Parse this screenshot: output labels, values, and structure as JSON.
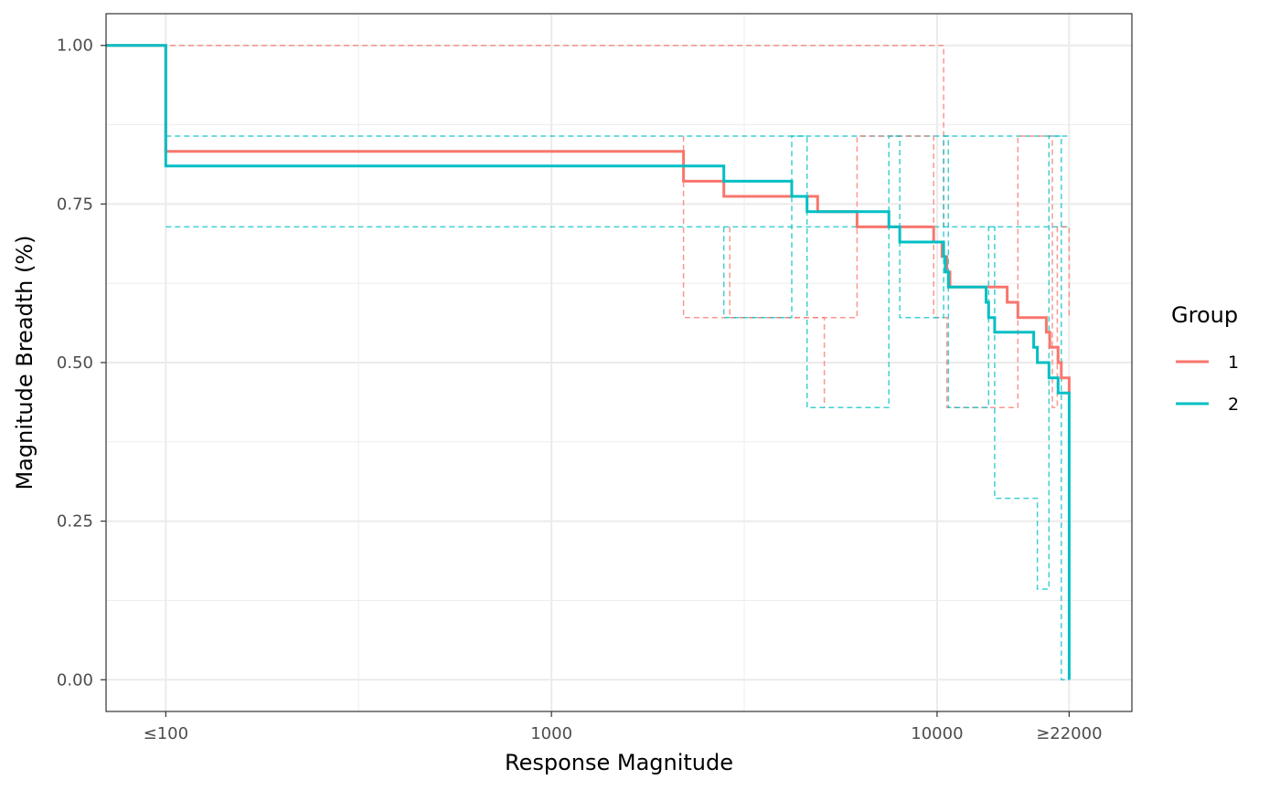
{
  "chart_data": {
    "type": "line",
    "xlabel": "Response Magnitude",
    "ylabel": "Magnitude Breadth (%)",
    "x_scale": "log10",
    "xlim": [
      70,
      32000
    ],
    "ylim": [
      -0.05,
      1.05
    ],
    "grid": true,
    "legend_title": "Group",
    "legend_position": "right",
    "x_ticks": [
      {
        "value": 100,
        "label": "≤100"
      },
      {
        "value": 1000,
        "label": "1000"
      },
      {
        "value": 10000,
        "label": "10000"
      },
      {
        "value": 22000,
        "label": "≥22000"
      }
    ],
    "x_minor_ticks": [
      316,
      3162
    ],
    "y_ticks": [
      {
        "value": 0,
        "label": "0.00"
      },
      {
        "value": 0.25,
        "label": "0.25"
      },
      {
        "value": 0.5,
        "label": "0.50"
      },
      {
        "value": 0.75,
        "label": "0.75"
      },
      {
        "value": 1.0,
        "label": "1.00"
      }
    ],
    "y_minor_ticks": [
      0.125,
      0.375,
      0.625,
      0.875
    ],
    "series": [
      {
        "name": "1",
        "color": "#f8766d",
        "style": "solid",
        "x": [
          70,
          100,
          2200,
          2800,
          4900,
          6200,
          9800,
          10300,
          10600,
          10700,
          10800,
          14200,
          15200,
          16200,
          19200,
          19600,
          20600,
          21000,
          21500,
          22000
        ],
        "y": [
          1.0,
          0.833,
          0.786,
          0.762,
          0.738,
          0.714,
          0.69,
          0.667,
          0.643,
          0.643,
          0.619,
          0.619,
          0.595,
          0.571,
          0.548,
          0.524,
          0.5,
          0.476,
          0.476,
          0.452
        ]
      },
      {
        "name": "2",
        "color": "#00bfc4",
        "style": "solid",
        "x": [
          70,
          100,
          2800,
          4200,
          4600,
          7500,
          8000,
          10400,
          10500,
          10600,
          10700,
          13400,
          13600,
          14100,
          17800,
          18200,
          19500,
          20600,
          21000,
          21500,
          22000
        ],
        "y": [
          1.0,
          0.81,
          0.786,
          0.762,
          0.738,
          0.714,
          0.69,
          0.667,
          0.643,
          0.643,
          0.619,
          0.595,
          0.571,
          0.548,
          0.524,
          0.5,
          0.476,
          0.452,
          0.452,
          0.452,
          0.0
        ]
      },
      {
        "name": "",
        "color": "#f8766d",
        "style": "dashed",
        "x": [
          70,
          100,
          10300,
          10400
        ],
        "y": [
          1.0,
          1.0,
          1.0,
          0.714
        ]
      },
      {
        "name": "",
        "color": "#00bfc4",
        "style": "dashed",
        "x": [
          100,
          22000
        ],
        "y": [
          0.857,
          0.857
        ]
      },
      {
        "name": "",
        "color": "#00bfc4",
        "style": "dashed",
        "x": [
          100,
          22000
        ],
        "y": [
          0.714,
          0.714
        ]
      },
      {
        "name": "",
        "color": "#f8766d",
        "style": "dashed",
        "x": [
          2200,
          2200,
          2200,
          6200,
          6200,
          9800,
          9800,
          10600,
          10600,
          16200,
          16200,
          19900,
          19900,
          20500,
          20500,
          22000
        ],
        "y": [
          0.857,
          0.571,
          0.571,
          0.571,
          0.857,
          0.857,
          0.571,
          0.571,
          0.429,
          0.429,
          0.857,
          0.714,
          0.429,
          0.429,
          0.714,
          0.571
        ]
      },
      {
        "name": "",
        "color": "#f8766d",
        "style": "dashed",
        "x": [
          2900,
          2900,
          5100,
          5100
        ],
        "y": [
          0.714,
          0.571,
          0.571,
          0.429
        ]
      },
      {
        "name": "",
        "color": "#00bfc4",
        "style": "dashed",
        "x": [
          2800,
          2800,
          4200,
          4200,
          4600,
          4600,
          7500,
          7500,
          8000,
          8000,
          10400,
          10400,
          10700,
          10700,
          13600,
          13600,
          14100,
          14100,
          18200,
          18200,
          19500,
          19500,
          21000,
          21000,
          22000
        ],
        "y": [
          0.714,
          0.571,
          0.571,
          0.857,
          0.857,
          0.429,
          0.429,
          0.857,
          0.857,
          0.571,
          0.571,
          0.857,
          0.857,
          0.429,
          0.429,
          0.714,
          0.714,
          0.286,
          0.286,
          0.143,
          0.143,
          0.857,
          0.857,
          0.0,
          0.0
        ]
      }
    ]
  }
}
